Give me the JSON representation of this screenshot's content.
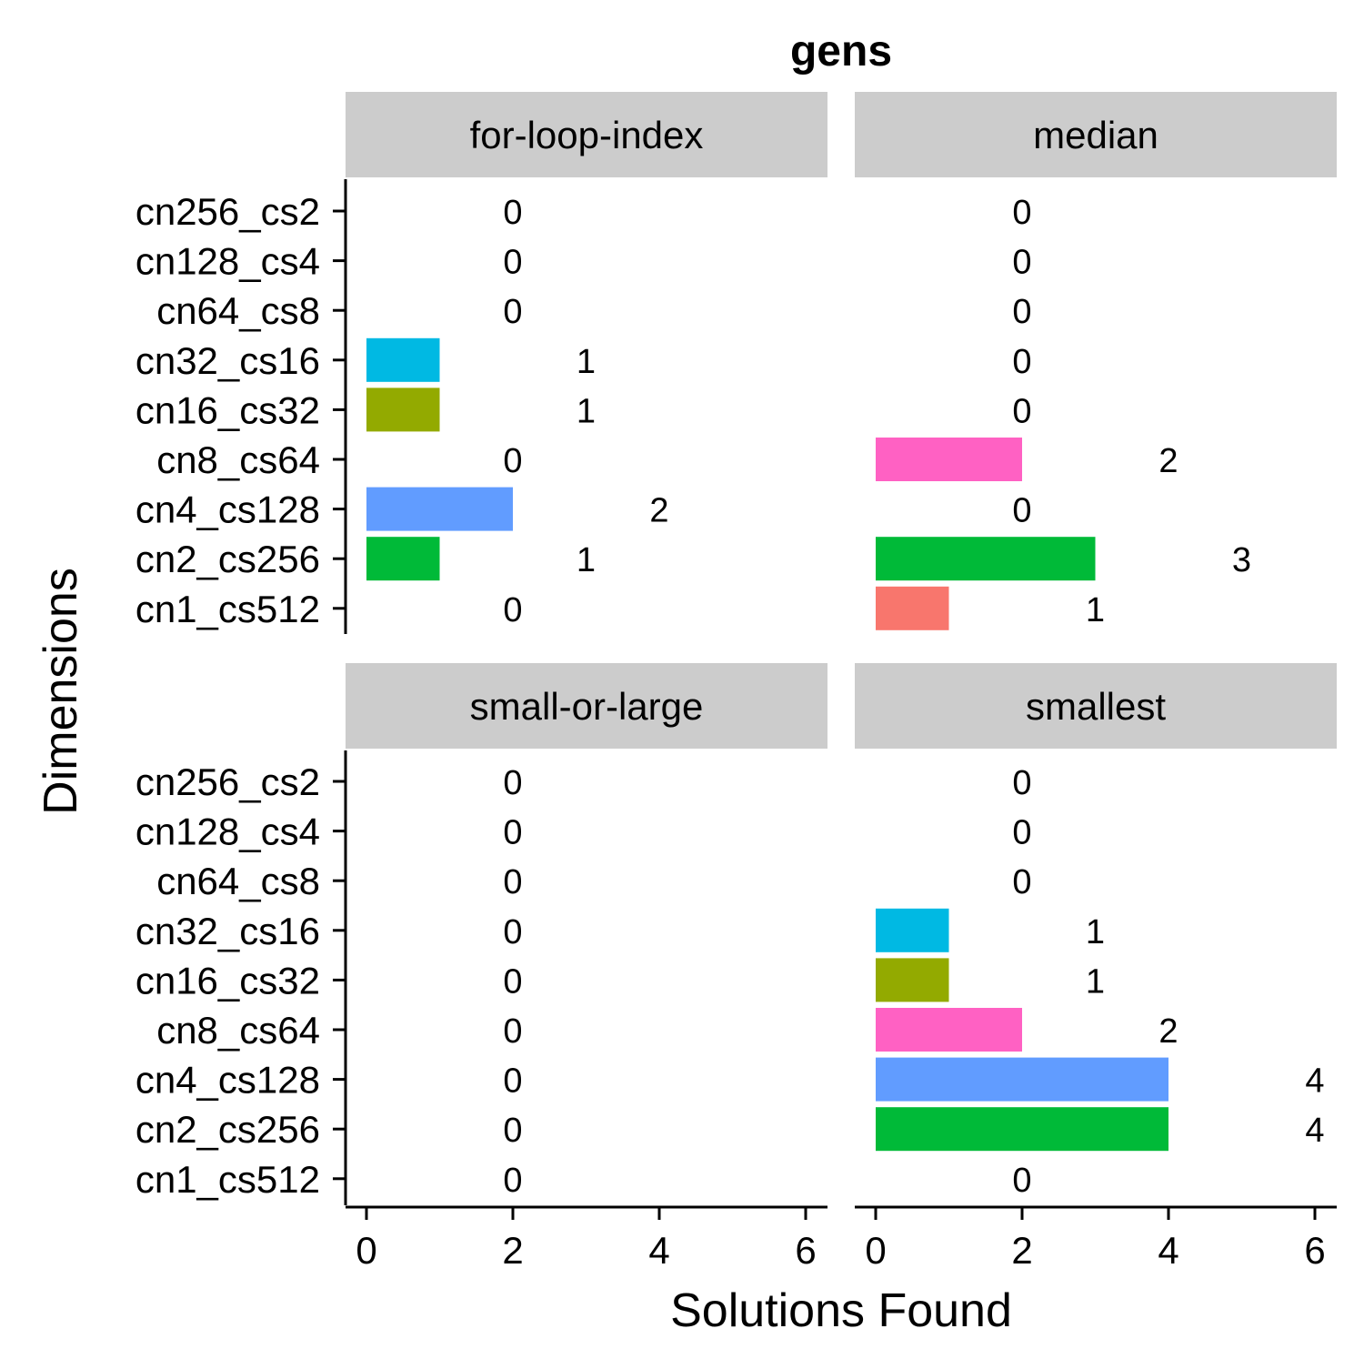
{
  "chart_data": {
    "type": "bar",
    "orientation": "horizontal",
    "title": "gens",
    "xlabel": "Solutions Found",
    "ylabel": "Dimensions",
    "xlim": [
      0,
      6
    ],
    "xticks": [
      0,
      2,
      4,
      6
    ],
    "grid": false,
    "legend": "none",
    "categories": [
      "cn256_cs2",
      "cn128_cs4",
      "cn64_cs8",
      "cn32_cs16",
      "cn16_cs32",
      "cn8_cs64",
      "cn4_cs128",
      "cn2_cs256",
      "cn1_cs512"
    ],
    "category_colors": {
      "cn256_cs2": "#FF61C3",
      "cn128_cs4": "#DB72FB",
      "cn64_cs8": "#93AA00",
      "cn32_cs16": "#00B9E3",
      "cn16_cs32": "#93AA00",
      "cn8_cs64": "#FF61C3",
      "cn4_cs128": "#619CFF",
      "cn2_cs256": "#00BA38",
      "cn1_cs512": "#F8766D"
    },
    "facets": [
      {
        "name": "for-loop-index",
        "values": [
          0,
          0,
          0,
          1,
          1,
          0,
          2,
          1,
          0
        ]
      },
      {
        "name": "median",
        "values": [
          0,
          0,
          0,
          0,
          0,
          2,
          0,
          3,
          1
        ]
      },
      {
        "name": "small-or-large",
        "values": [
          0,
          0,
          0,
          0,
          0,
          0,
          0,
          0,
          0
        ]
      },
      {
        "name": "smallest",
        "values": [
          0,
          0,
          0,
          1,
          1,
          2,
          4,
          4,
          0
        ]
      }
    ]
  }
}
